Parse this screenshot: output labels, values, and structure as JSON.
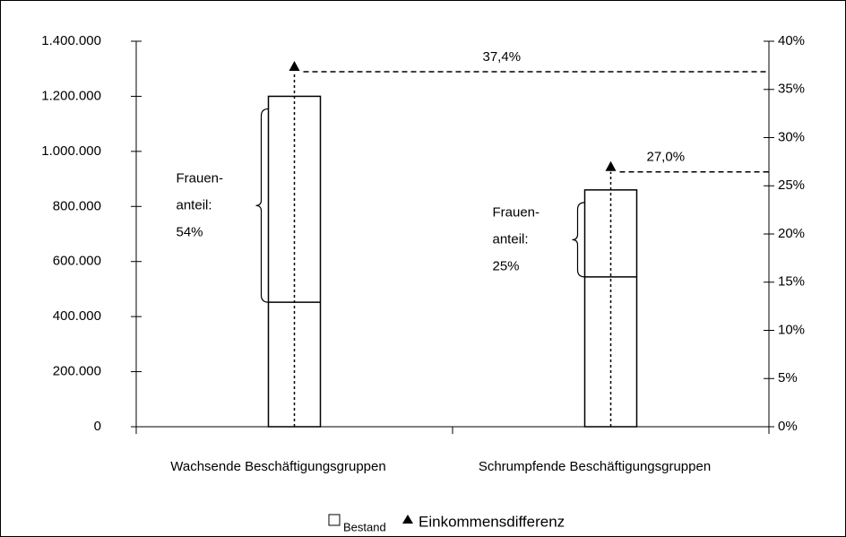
{
  "chart_data": {
    "type": "bar_marker",
    "categories": [
      "Wachsende Beschäftigungsgruppen",
      "Schrumpfende Beschäftigungsgruppen"
    ],
    "series": [
      {
        "name": "Bestand",
        "color": "#ffffff",
        "values": [
          1200000,
          860000
        ],
        "split_values": [
          452000,
          544000
        ]
      },
      {
        "name": "Einkommensdifferenz",
        "color": "#000000",
        "axis": "y2",
        "values": [
          37.4,
          27.0
        ],
        "value_labels": [
          "37,4%",
          "27,0%"
        ]
      }
    ],
    "annotations": [
      {
        "lines": [
          "Frauen-",
          "anteil:",
          "54%"
        ]
      },
      {
        "lines": [
          "Frauen-",
          "anteil:",
          "25%"
        ]
      }
    ],
    "ylim": [
      0,
      1400000
    ],
    "yticks": [
      0,
      {
        "value": 200000,
        "label": "200.000"
      },
      {
        "value": 400000,
        "label": "400.000"
      },
      {
        "value": 600000,
        "label": "600.000"
      },
      {
        "value": 800000,
        "label": "800.000"
      },
      {
        "value": 1000000,
        "label": "1.000.000"
      },
      {
        "value": 1200000,
        "label": "1.200.000"
      },
      {
        "value": 1400000,
        "label": "1.400.000"
      }
    ],
    "y2lim": [
      0,
      40
    ],
    "y2ticks": [
      {
        "value": 0,
        "label": "0%"
      },
      {
        "value": 5,
        "label": "5%"
      },
      {
        "value": 10,
        "label": "10%"
      },
      {
        "value": 15,
        "label": "15%"
      },
      {
        "value": 20,
        "label": "20%"
      },
      {
        "value": 25,
        "label": "25%"
      },
      {
        "value": 30,
        "label": "30%"
      },
      {
        "value": 35,
        "label": "35%"
      },
      {
        "value": 40,
        "label": "40%"
      }
    ]
  }
}
